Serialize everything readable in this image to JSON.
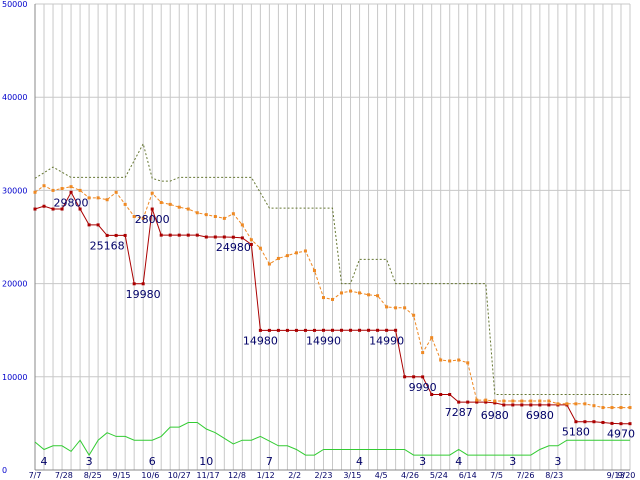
{
  "chart_data": {
    "type": "line",
    "title": "",
    "xlabel": "",
    "ylabel": "",
    "ylim": [
      0,
      50000
    ],
    "grid": true,
    "y_ticks": [
      "50000",
      "40000",
      "30000",
      "20000",
      "10000",
      "0"
    ],
    "x_ticks": [
      "7/7",
      "7/28",
      "8/25",
      "9/15",
      "10/6",
      "10/27",
      "11/17",
      "12/8",
      "1/12",
      "2/2",
      "2/23",
      "3/15",
      "4/5",
      "4/26",
      "5/24",
      "6/14",
      "7/5",
      "7/26",
      "8/23",
      "9/13",
      "9/20"
    ],
    "series": [
      {
        "key": "min_price",
        "color": "#aa0000",
        "style": "solid",
        "points": [
          [
            0,
            28000
          ],
          [
            0.5,
            28300
          ],
          [
            1,
            28000
          ],
          [
            1.5,
            28000
          ],
          [
            2,
            29800
          ],
          [
            2.5,
            28000
          ],
          [
            3,
            26300
          ],
          [
            3.5,
            26300
          ],
          [
            4,
            25168
          ],
          [
            4.5,
            25168
          ],
          [
            5,
            25168
          ],
          [
            5.5,
            19980
          ],
          [
            6,
            19980
          ],
          [
            6.5,
            28000
          ],
          [
            7,
            25200
          ],
          [
            7.5,
            25200
          ],
          [
            8,
            25200
          ],
          [
            8.5,
            25200
          ],
          [
            9,
            25200
          ],
          [
            9.5,
            25000
          ],
          [
            10,
            25000
          ],
          [
            10.5,
            25000
          ],
          [
            11,
            24980
          ],
          [
            11.5,
            24900
          ],
          [
            12,
            24200
          ],
          [
            12.5,
            14980
          ],
          [
            13,
            14980
          ],
          [
            13.5,
            14980
          ],
          [
            14,
            14980
          ],
          [
            14.5,
            14980
          ],
          [
            15,
            14980
          ],
          [
            15.5,
            14980
          ],
          [
            16,
            14990
          ],
          [
            16.5,
            14990
          ],
          [
            17,
            14990
          ],
          [
            17.5,
            14990
          ],
          [
            18,
            14990
          ],
          [
            18.5,
            14990
          ],
          [
            19,
            14990
          ],
          [
            19.5,
            14990
          ],
          [
            20,
            14990
          ],
          [
            20.5,
            10000
          ],
          [
            21,
            10000
          ],
          [
            21.5,
            9990
          ],
          [
            22,
            8100
          ],
          [
            22.5,
            8100
          ],
          [
            23,
            8100
          ],
          [
            23.5,
            7287
          ],
          [
            24,
            7287
          ],
          [
            24.5,
            7287
          ],
          [
            25,
            7287
          ],
          [
            25.5,
            7200
          ],
          [
            26,
            6980
          ],
          [
            26.5,
            6980
          ],
          [
            27,
            6980
          ],
          [
            27.5,
            6980
          ],
          [
            28,
            6980
          ],
          [
            28.5,
            6980
          ],
          [
            29,
            6980
          ],
          [
            29.5,
            6980
          ],
          [
            30,
            5180
          ],
          [
            30.5,
            5180
          ],
          [
            31,
            5180
          ],
          [
            31.5,
            5100
          ],
          [
            32,
            5000
          ],
          [
            32.5,
            4970
          ],
          [
            33,
            4970
          ]
        ]
      },
      {
        "key": "avg_price",
        "color": "#ee8822",
        "style": "dotted",
        "points": [
          [
            0,
            29800
          ],
          [
            0.5,
            30500
          ],
          [
            1,
            30000
          ],
          [
            1.5,
            30200
          ],
          [
            2,
            30400
          ],
          [
            2.5,
            30000
          ],
          [
            3,
            29200
          ],
          [
            3.5,
            29200
          ],
          [
            4,
            29000
          ],
          [
            4.5,
            29800
          ],
          [
            5,
            28500
          ],
          [
            5.5,
            27200
          ],
          [
            6,
            27000
          ],
          [
            6.5,
            29700
          ],
          [
            7,
            28700
          ],
          [
            7.5,
            28500
          ],
          [
            8,
            28200
          ],
          [
            8.5,
            28000
          ],
          [
            9,
            27600
          ],
          [
            9.5,
            27400
          ],
          [
            10,
            27200
          ],
          [
            10.5,
            27000
          ],
          [
            11,
            27500
          ],
          [
            11.5,
            26300
          ],
          [
            12,
            24700
          ],
          [
            12.5,
            23800
          ],
          [
            13,
            22100
          ],
          [
            13.5,
            22700
          ],
          [
            14,
            23000
          ],
          [
            14.5,
            23300
          ],
          [
            15,
            23500
          ],
          [
            15.5,
            21400
          ],
          [
            16,
            18500
          ],
          [
            16.5,
            18300
          ],
          [
            17,
            19000
          ],
          [
            17.5,
            19200
          ],
          [
            18,
            19000
          ],
          [
            18.5,
            18800
          ],
          [
            19,
            18700
          ],
          [
            19.5,
            17500
          ],
          [
            20,
            17400
          ],
          [
            20.5,
            17400
          ],
          [
            21,
            16600
          ],
          [
            21.5,
            12600
          ],
          [
            22,
            14200
          ],
          [
            22.5,
            11800
          ],
          [
            23,
            11700
          ],
          [
            23.5,
            11800
          ],
          [
            24,
            11500
          ],
          [
            24.5,
            7500
          ],
          [
            25,
            7500
          ],
          [
            25.5,
            7400
          ],
          [
            26,
            7400
          ],
          [
            26.5,
            7400
          ],
          [
            27,
            7400
          ],
          [
            27.5,
            7400
          ],
          [
            28,
            7400
          ],
          [
            28.5,
            7400
          ],
          [
            29,
            7100
          ],
          [
            29.5,
            7100
          ],
          [
            30,
            7100
          ],
          [
            30.5,
            7100
          ],
          [
            31,
            6900
          ],
          [
            31.5,
            6700
          ],
          [
            32,
            6700
          ],
          [
            32.5,
            6700
          ],
          [
            33,
            6700
          ]
        ]
      },
      {
        "key": "max_price",
        "color": "#667733",
        "style": "dashed",
        "points": [
          [
            0,
            31300
          ],
          [
            1,
            32500
          ],
          [
            2,
            31400
          ],
          [
            5,
            31400
          ],
          [
            6,
            35000
          ],
          [
            6.5,
            31300
          ],
          [
            7,
            31000
          ],
          [
            7.5,
            31000
          ],
          [
            8,
            31400
          ],
          [
            12,
            31400
          ],
          [
            13,
            28100
          ],
          [
            16.5,
            28100
          ],
          [
            17,
            20000
          ],
          [
            17.5,
            20000
          ],
          [
            18,
            22600
          ],
          [
            19.5,
            22600
          ],
          [
            20,
            20000
          ],
          [
            25,
            20000
          ],
          [
            25.5,
            8100
          ],
          [
            33,
            8100
          ]
        ]
      },
      {
        "key": "shop_count",
        "color": "#33cc33",
        "style": "solid",
        "points": [
          [
            0,
            3000
          ],
          [
            0.5,
            2200
          ],
          [
            1,
            2600
          ],
          [
            1.5,
            2600
          ],
          [
            2,
            2000
          ],
          [
            2.5,
            3200
          ],
          [
            3,
            1600
          ],
          [
            3.5,
            3200
          ],
          [
            4,
            4000
          ],
          [
            4.5,
            3600
          ],
          [
            5,
            3600
          ],
          [
            5.5,
            3200
          ],
          [
            6,
            3200
          ],
          [
            6.5,
            3200
          ],
          [
            7,
            3600
          ],
          [
            7.5,
            4600
          ],
          [
            8,
            4600
          ],
          [
            8.5,
            5100
          ],
          [
            9,
            5100
          ],
          [
            9.5,
            4400
          ],
          [
            10,
            4000
          ],
          [
            10.5,
            3400
          ],
          [
            11,
            2800
          ],
          [
            11.5,
            3200
          ],
          [
            12,
            3200
          ],
          [
            12.5,
            3600
          ],
          [
            13,
            3100
          ],
          [
            13.5,
            2600
          ],
          [
            14,
            2600
          ],
          [
            14.5,
            2200
          ],
          [
            15,
            1600
          ],
          [
            15.5,
            1600
          ],
          [
            16,
            2200
          ],
          [
            20,
            2200
          ],
          [
            20.5,
            2200
          ],
          [
            21,
            1600
          ],
          [
            22,
            1600
          ],
          [
            23,
            1600
          ],
          [
            23.5,
            2200
          ],
          [
            24,
            1600
          ],
          [
            25,
            1600
          ],
          [
            25.5,
            1600
          ],
          [
            26,
            1600
          ],
          [
            27,
            1600
          ],
          [
            27.5,
            1600
          ],
          [
            28,
            2200
          ],
          [
            28.5,
            2600
          ],
          [
            29,
            2600
          ],
          [
            29.5,
            3200
          ],
          [
            30,
            3200
          ],
          [
            30.5,
            3200
          ],
          [
            33,
            3200
          ]
        ]
      }
    ],
    "price_labels": [
      {
        "x": 2,
        "y": 29800,
        "text": "29800"
      },
      {
        "x": 4,
        "y": 25168,
        "text": "25168"
      },
      {
        "x": 6,
        "y": 19980,
        "text": "19980"
      },
      {
        "x": 6.5,
        "y": 28000,
        "text": "28000"
      },
      {
        "x": 11,
        "y": 24980,
        "text": "24980"
      },
      {
        "x": 12.5,
        "y": 14980,
        "text": "14980"
      },
      {
        "x": 16,
        "y": 14990,
        "text": "14990"
      },
      {
        "x": 19.5,
        "y": 14990,
        "text": "14990"
      },
      {
        "x": 21.5,
        "y": 9990,
        "text": "9990"
      },
      {
        "x": 23.5,
        "y": 7287,
        "text": "7287"
      },
      {
        "x": 25.5,
        "y": 6980,
        "text": "6980"
      },
      {
        "x": 28,
        "y": 6980,
        "text": "6980"
      },
      {
        "x": 30,
        "y": 5180,
        "text": "5180"
      },
      {
        "x": 32.5,
        "y": 4970,
        "text": "4970"
      }
    ],
    "count_labels": [
      {
        "x": 0.5,
        "text": "4"
      },
      {
        "x": 3,
        "text": "3"
      },
      {
        "x": 6.5,
        "text": "6"
      },
      {
        "x": 9.5,
        "text": "10"
      },
      {
        "x": 13,
        "text": "7"
      },
      {
        "x": 18,
        "text": "4"
      },
      {
        "x": 21.5,
        "text": "3"
      },
      {
        "x": 23.5,
        "text": "4"
      },
      {
        "x": 26.5,
        "text": "3"
      },
      {
        "x": 29,
        "text": "3"
      }
    ]
  }
}
